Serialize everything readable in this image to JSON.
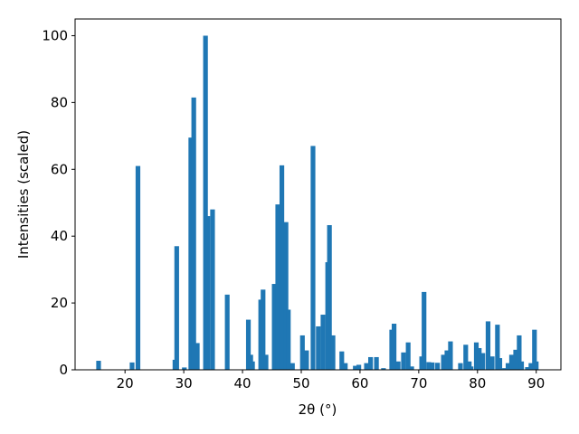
{
  "chart_data": {
    "type": "bar",
    "color": "#1f77b4",
    "x_label": "2θ (°)",
    "y_label": "Intensities (scaled)",
    "x": [
      15.5,
      21.2,
      22.2,
      28.5,
      28.8,
      30.1,
      31.2,
      31.7,
      32.3,
      33.7,
      34.1,
      34.9,
      37.4,
      41.0,
      41.4,
      41.7,
      43.1,
      43.5,
      44.0,
      45.4,
      46.0,
      46.7,
      47.4,
      47.8,
      48.5,
      50.2,
      50.9,
      52.0,
      52.9,
      53.7,
      54.5,
      54.8,
      55.4,
      56.9,
      57.5,
      59.2,
      59.8,
      61.1,
      61.8,
      62.8,
      64.0,
      65.4,
      65.8,
      66.5,
      67.4,
      68.2,
      68.8,
      70.5,
      70.9,
      71.7,
      72.3,
      73.2,
      74.2,
      74.8,
      75.4,
      77.1,
      78.0,
      78.6,
      78.9,
      79.8,
      80.3,
      80.9,
      81.8,
      82.5,
      83.4,
      83.8,
      84.6,
      85.2,
      85.8,
      86.5,
      87.1,
      87.5,
      88.5,
      89.1,
      89.7,
      90.0
    ],
    "values": [
      2.7,
      2.2,
      61,
      3,
      37,
      0.7,
      69.5,
      81.5,
      8,
      100,
      46,
      48,
      22.5,
      15,
      4.5,
      2.5,
      21,
      24,
      4.5,
      25.7,
      49.5,
      61.2,
      44.2,
      18,
      2,
      10.3,
      5.8,
      67,
      13,
      16.5,
      32.2,
      43.3,
      10.3,
      5.5,
      2,
      1.2,
      1.5,
      2,
      3.8,
      3.8,
      0.5,
      12,
      13.8,
      2.5,
      5.2,
      8.2,
      1,
      4,
      23.3,
      2.3,
      2.2,
      2.1,
      4.5,
      5.8,
      8.5,
      2,
      7.5,
      2.5,
      1,
      8.2,
      6.5,
      5,
      14.5,
      4,
      13.5,
      3.5,
      0.5,
      2,
      4.5,
      6,
      10.3,
      2.5,
      0.8,
      2,
      12,
      2.5
    ],
    "xlim": [
      11.5,
      94.2
    ],
    "ylim": [
      0,
      105
    ],
    "xticks": [
      20,
      30,
      40,
      50,
      60,
      70,
      80,
      90
    ],
    "yticks": [
      0,
      20,
      40,
      60,
      80,
      100
    ]
  }
}
